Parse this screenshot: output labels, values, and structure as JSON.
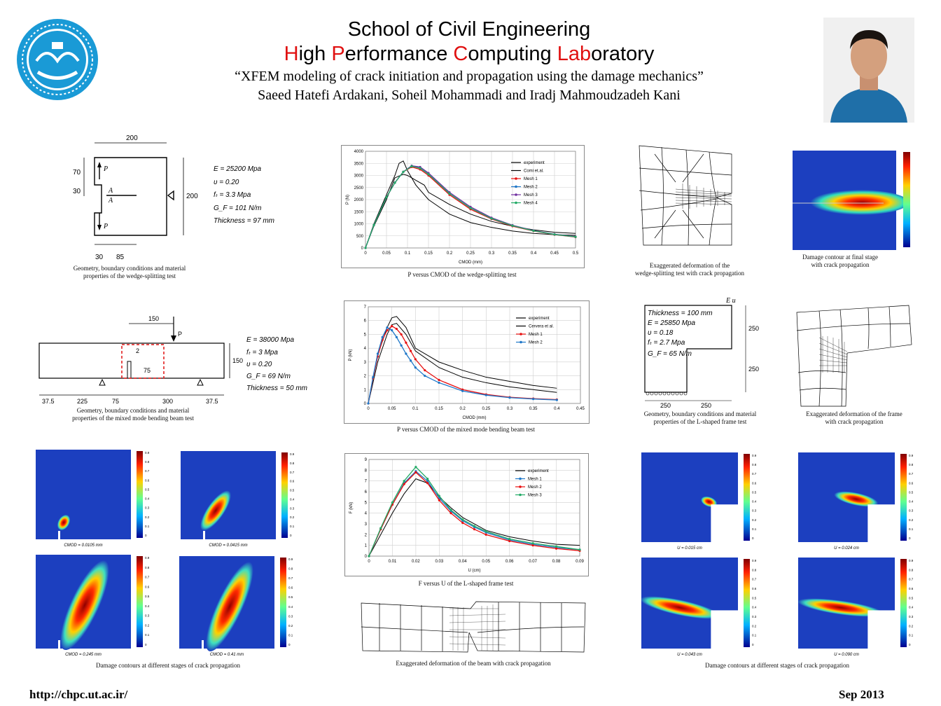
{
  "header": {
    "line1": "School of Civil Engineering",
    "line2_parts": [
      {
        "t": "H",
        "red": true
      },
      {
        "t": "igh ",
        "red": false
      },
      {
        "t": "P",
        "red": true
      },
      {
        "t": "erformance ",
        "red": false
      },
      {
        "t": "C",
        "red": true
      },
      {
        "t": "omputing ",
        "red": false
      },
      {
        "t": "Lab",
        "red": true
      },
      {
        "t": "oratory",
        "red": false
      }
    ],
    "title": "“XFEM modeling of crack initiation and propagation using the damage mechanics”",
    "authors": "Saeed Hatefi Ardakani, Soheil Mohammadi and Iradj Mahmoudzadeh Kani"
  },
  "footer": {
    "url": "http://chpc.ut.ac.ir/",
    "date": "Sep 2013"
  },
  "geom1": {
    "dims": {
      "top": "200",
      "right": "200",
      "left1": "70",
      "left2": "30",
      "bot1": "30",
      "bot2": "85",
      "P": "P",
      "A": "A"
    },
    "props": [
      "E = 25200 Mpa",
      "υ = 0.20",
      "fₜ = 3.3 Mpa",
      "G_F = 101 N/m",
      "Thickness = 97 mm"
    ],
    "caption": [
      "Geometry, boundary conditions and material",
      "properties of the wedge-splitting test"
    ]
  },
  "geom2": {
    "dims": {
      "top": "150",
      "P": "P",
      "right": "150",
      "notch": "2",
      "depth": "75",
      "bottom": [
        "37.5",
        "225",
        "75",
        "300",
        "37.5"
      ]
    },
    "props": [
      "E = 38000 Mpa",
      "fₜ = 3 Mpa",
      "υ = 0.20",
      "G_F = 69 N/m",
      "Thickness = 50 mm"
    ],
    "caption": [
      "Geometry, boundary conditions and material",
      "properties of the mixed mode bending beam test"
    ]
  },
  "geom3": {
    "props": [
      "Thickness = 100 mm",
      "E = 25850 Mpa",
      "υ = 0.18",
      "fₜ = 2.7 Mpa",
      "G_F = 65 N/m"
    ],
    "dims": {
      "Eu": "E u",
      "right1": "250",
      "right2": "250",
      "bot1": "250",
      "bot2": "250"
    },
    "caption": [
      "Geometry, boundary conditions and material",
      "properties of the L-shaped frame test"
    ]
  },
  "mesh_captions": {
    "wedge": [
      "Exaggerated deformation of the",
      "wedge-splitting test with crack propagation"
    ],
    "wedge_damage": [
      "Damage contour at final stage",
      "with crack propagation"
    ],
    "frame": [
      "Exaggerated deformation of the frame",
      "with crack propagation"
    ],
    "beam": [
      "Exaggerated deformation of the beam with crack propagation"
    ],
    "left_contours": [
      "Damage contours at different stages of crack propagation"
    ],
    "right_contours": [
      "Damage contours at different stages of crack propagation"
    ]
  },
  "contour_labels": {
    "left": [
      "CMOD = 0.0105 mm",
      "CMOD = 0.0415 mm",
      "CMOD = 0.245 mm",
      "CMOD = 0.41 mm"
    ],
    "right": [
      "U = 0.015 cm",
      "U = 0.024 cm",
      "U = 0.043 cm",
      "U = 0.090 cm"
    ]
  },
  "colorbar_ticks": [
    "0.9",
    "0.8",
    "0.7",
    "0.6",
    "0.5",
    "0.4",
    "0.3",
    "0.2",
    "0.1",
    "0"
  ],
  "colors": {
    "black": "#000000",
    "red": "#e81010",
    "blue": "#1f77c8",
    "purple": "#7030a0",
    "green": "#22aa66"
  },
  "chart_data": [
    {
      "type": "line",
      "caption": "P versus CMOD of the wedge-splitting test",
      "xlabel": "CMOD (mm)",
      "ylabel": "P (N)",
      "xlim": [
        0,
        0.5
      ],
      "ylim": [
        0,
        4000
      ],
      "xticks": [
        "0",
        "0.05",
        "0.1",
        "0.15",
        "0.2",
        "0.25",
        "0.3",
        "0.35",
        "0.4",
        "0.45",
        "0.5"
      ],
      "yticks": [
        "0",
        "500",
        "1000",
        "1500",
        "2000",
        "2500",
        "3000",
        "3500",
        "4000"
      ],
      "series": [
        {
          "name": "experiment",
          "color": "#000000",
          "marker": false,
          "x": [
            0,
            0.02,
            0.05,
            0.07,
            0.08,
            0.09,
            0.1,
            0.12,
            0.15,
            0.2,
            0.25,
            0.3,
            0.35,
            0.4,
            0.45,
            0.5
          ],
          "y": [
            0,
            1000,
            2200,
            3000,
            3500,
            3600,
            3200,
            2600,
            2000,
            1400,
            1050,
            850,
            700,
            600,
            550,
            520
          ]
        },
        {
          "name": "Comi et.al.",
          "color": "#000000",
          "marker": false,
          "x": [
            0,
            0.02,
            0.05,
            0.07,
            0.09,
            0.1,
            0.12,
            0.14,
            0.15,
            0.2,
            0.25,
            0.3,
            0.35,
            0.4,
            0.45,
            0.5
          ],
          "y": [
            0,
            900,
            2000,
            2900,
            3050,
            3000,
            2800,
            2600,
            2300,
            1800,
            1400,
            1100,
            900,
            750,
            650,
            600
          ]
        },
        {
          "name": "Mesh 1",
          "color": "#e81010",
          "marker": true,
          "x": [
            0,
            0.02,
            0.05,
            0.07,
            0.09,
            0.11,
            0.13,
            0.15,
            0.2,
            0.25,
            0.3,
            0.35,
            0.4,
            0.45,
            0.5
          ],
          "y": [
            0,
            950,
            2100,
            2700,
            3150,
            3350,
            3250,
            3000,
            2200,
            1600,
            1200,
            900,
            700,
            550,
            450
          ]
        },
        {
          "name": "Mesh 2",
          "color": "#1f77c8",
          "marker": true,
          "x": [
            0,
            0.02,
            0.05,
            0.07,
            0.09,
            0.11,
            0.13,
            0.15,
            0.2,
            0.25,
            0.3,
            0.35,
            0.4,
            0.45,
            0.5
          ],
          "y": [
            0,
            950,
            2100,
            2700,
            3150,
            3400,
            3300,
            3050,
            2250,
            1650,
            1220,
            920,
            710,
            560,
            460
          ]
        },
        {
          "name": "Mesh 3",
          "color": "#7030a0",
          "marker": true,
          "x": [
            0,
            0.02,
            0.05,
            0.07,
            0.09,
            0.11,
            0.13,
            0.15,
            0.2,
            0.25,
            0.3,
            0.35,
            0.4,
            0.45,
            0.5
          ],
          "y": [
            0,
            950,
            2100,
            2700,
            3150,
            3400,
            3350,
            3100,
            2300,
            1700,
            1250,
            940,
            720,
            570,
            470
          ]
        },
        {
          "name": "Mesh 4",
          "color": "#22aa66",
          "marker": true,
          "x": [
            0,
            0.02,
            0.05,
            0.07,
            0.09,
            0.11,
            0.13,
            0.15,
            0.2,
            0.25,
            0.3,
            0.35,
            0.4,
            0.45,
            0.5
          ],
          "y": [
            0,
            950,
            2100,
            2700,
            3150,
            3380,
            3300,
            3050,
            2250,
            1650,
            1220,
            920,
            710,
            560,
            460
          ]
        }
      ]
    },
    {
      "type": "line",
      "caption": "P versus CMOD of the mixed mode bending beam test",
      "xlabel": "CMOD (mm)",
      "ylabel": "P (kN)",
      "xlim": [
        0,
        0.45
      ],
      "ylim": [
        0,
        7
      ],
      "xticks": [
        "0",
        "0.05",
        "0.1",
        "0.15",
        "0.2",
        "0.25",
        "0.3",
        "0.35",
        "0.4",
        "0.45"
      ],
      "yticks": [
        "0",
        "1",
        "2",
        "3",
        "4",
        "5",
        "6",
        "7"
      ],
      "series": [
        {
          "name": "experiment",
          "color": "#000000",
          "marker": false,
          "x": [
            0,
            0.02,
            0.04,
            0.05,
            0.06,
            0.08,
            0.1,
            0.15,
            0.2,
            0.25,
            0.3,
            0.35,
            0.4
          ],
          "y": [
            0,
            3.5,
            5.5,
            6.2,
            6.3,
            5.5,
            4.0,
            3.0,
            2.4,
            1.9,
            1.6,
            1.3,
            1.1
          ]
        },
        {
          "name": "Cervera et al.",
          "color": "#000000",
          "marker": false,
          "x": [
            0,
            0.02,
            0.04,
            0.05,
            0.06,
            0.08,
            0.1,
            0.15,
            0.2,
            0.25,
            0.3,
            0.35,
            0.4
          ],
          "y": [
            0,
            3.0,
            5.0,
            5.7,
            5.8,
            5.0,
            3.8,
            2.6,
            1.9,
            1.5,
            1.2,
            1.0,
            0.8
          ]
        },
        {
          "name": "Mesh 1",
          "color": "#e81010",
          "marker": true,
          "x": [
            0,
            0.01,
            0.02,
            0.03,
            0.04,
            0.05,
            0.06,
            0.07,
            0.08,
            0.09,
            0.1,
            0.12,
            0.15,
            0.2,
            0.25,
            0.3,
            0.35,
            0.4
          ],
          "y": [
            0,
            1.8,
            3.4,
            4.6,
            5.3,
            5.6,
            5.4,
            5.0,
            4.4,
            3.8,
            3.2,
            2.4,
            1.7,
            1.0,
            0.65,
            0.45,
            0.35,
            0.28
          ]
        },
        {
          "name": "Mesh 2",
          "color": "#1f77c8",
          "marker": true,
          "x": [
            0,
            0.01,
            0.02,
            0.03,
            0.04,
            0.05,
            0.06,
            0.07,
            0.08,
            0.09,
            0.1,
            0.12,
            0.15,
            0.2,
            0.25,
            0.3,
            0.35,
            0.4
          ],
          "y": [
            0,
            1.9,
            3.6,
            4.8,
            5.5,
            5.3,
            4.8,
            4.2,
            3.6,
            3.1,
            2.6,
            2.0,
            1.5,
            0.9,
            0.6,
            0.42,
            0.32,
            0.25
          ]
        }
      ]
    },
    {
      "type": "line",
      "caption": "F versus U of the L-shaped frame test",
      "xlabel": "U (cm)",
      "ylabel": "F (kN)",
      "xlim": [
        0,
        0.09
      ],
      "ylim": [
        0,
        9
      ],
      "xticks": [
        "0",
        "0.01",
        "0.02",
        "0.03",
        "0.04",
        "0.05",
        "0.06",
        "0.07",
        "0.08",
        "0.09"
      ],
      "yticks": [
        "0",
        "1",
        "2",
        "3",
        "4",
        "5",
        "6",
        "7",
        "8",
        "9"
      ],
      "series": [
        {
          "name": "experiment",
          "color": "#000000",
          "marker": false,
          "x": [
            0,
            0.005,
            0.01,
            0.015,
            0.02,
            0.025,
            0.03,
            0.035,
            0.04,
            0.05,
            0.06,
            0.07,
            0.08,
            0.09
          ],
          "y": [
            0,
            2.0,
            4.0,
            5.8,
            7.2,
            6.8,
            5.5,
            4.5,
            3.6,
            2.4,
            1.8,
            1.4,
            1.1,
            1.0
          ]
        },
        {
          "name": "Mesh 1",
          "color": "#1f77c8",
          "marker": true,
          "x": [
            0,
            0.005,
            0.01,
            0.015,
            0.02,
            0.025,
            0.03,
            0.035,
            0.04,
            0.045,
            0.05,
            0.06,
            0.07,
            0.08,
            0.09
          ],
          "y": [
            0,
            2.5,
            4.8,
            6.8,
            7.9,
            7.0,
            5.4,
            4.2,
            3.3,
            2.7,
            2.2,
            1.5,
            1.1,
            0.8,
            0.6
          ]
        },
        {
          "name": "Mesh 2",
          "color": "#e81010",
          "marker": true,
          "x": [
            0,
            0.005,
            0.01,
            0.015,
            0.02,
            0.025,
            0.03,
            0.035,
            0.04,
            0.045,
            0.05,
            0.06,
            0.07,
            0.08,
            0.09
          ],
          "y": [
            0,
            2.5,
            4.8,
            6.7,
            7.8,
            6.8,
            5.2,
            4.0,
            3.1,
            2.5,
            2.0,
            1.4,
            1.0,
            0.7,
            0.5
          ]
        },
        {
          "name": "Mesh 3",
          "color": "#22aa66",
          "marker": true,
          "x": [
            0,
            0.005,
            0.01,
            0.015,
            0.02,
            0.025,
            0.03,
            0.035,
            0.04,
            0.045,
            0.05,
            0.06,
            0.07,
            0.08,
            0.09
          ],
          "y": [
            0,
            2.6,
            5.0,
            7.0,
            8.3,
            7.2,
            5.6,
            4.3,
            3.4,
            2.8,
            2.3,
            1.6,
            1.2,
            0.9,
            0.6
          ]
        }
      ]
    }
  ]
}
